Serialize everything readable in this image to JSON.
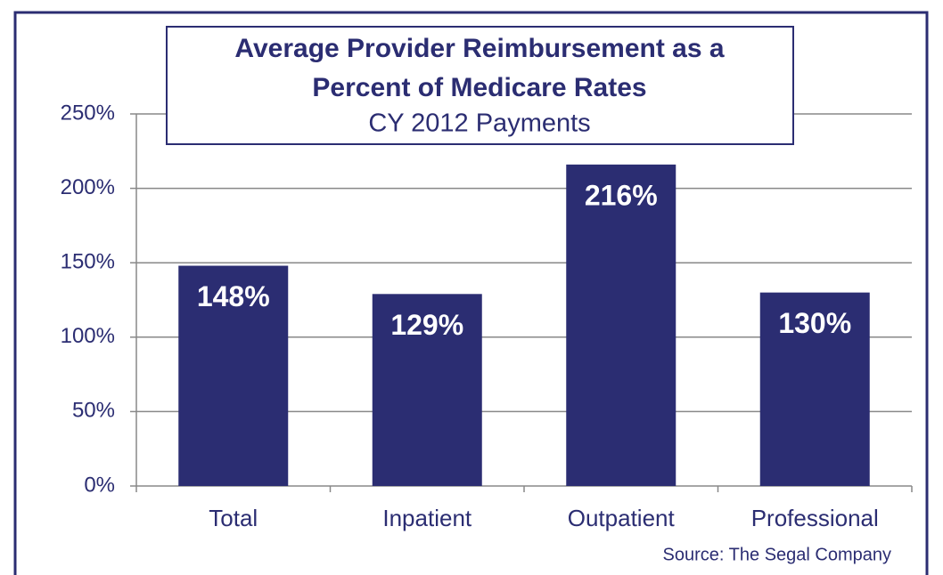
{
  "chart_data": {
    "type": "bar",
    "title": [
      "Average Provider Reimbursement as a",
      "Percent of Medicare Rates"
    ],
    "subtitle": "CY 2012 Payments",
    "annotation": "Source:  The Segal Company",
    "categories": [
      "Total",
      "Inpatient",
      "Outpatient",
      "Professional"
    ],
    "values": [
      148,
      129,
      216,
      130
    ],
    "value_labels": [
      "148%",
      "129%",
      "216%",
      "130%"
    ],
    "color": "#2b2d72",
    "ylim": [
      0,
      250
    ],
    "yticks": [
      {
        "value": 0,
        "label": "0%"
      },
      {
        "value": 50,
        "label": "50%"
      },
      {
        "value": 100,
        "label": "100%"
      },
      {
        "value": 150,
        "label": "150%"
      },
      {
        "value": 200,
        "label": "200%"
      },
      {
        "value": 250,
        "label": "250%"
      }
    ],
    "grid": true
  }
}
